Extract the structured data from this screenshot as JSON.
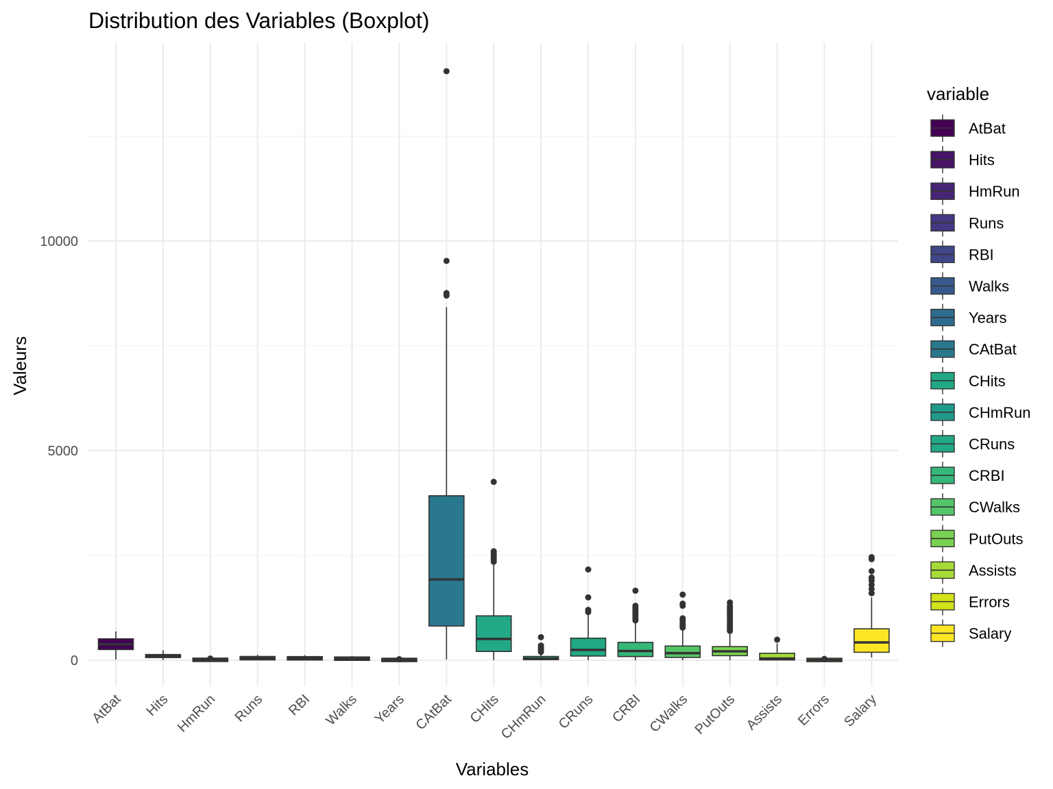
{
  "chart_data": {
    "type": "boxplot",
    "title": "Distribution des Variables (Boxplot)",
    "xlabel": "Variables",
    "ylabel": "Valeurs",
    "ylim": [
      -600,
      14200
    ],
    "yticks": [
      0,
      5000,
      10000
    ],
    "grid": true,
    "legend": {
      "title": "variable",
      "position": "right"
    },
    "categories": [
      "AtBat",
      "Hits",
      "HmRun",
      "Runs",
      "RBI",
      "Walks",
      "Years",
      "CAtBat",
      "CHits",
      "CHmRun",
      "CRuns",
      "CRBI",
      "CWalks",
      "PutOuts",
      "Assists",
      "Errors",
      "Salary"
    ],
    "colors": [
      "#440154",
      "#471365",
      "#482475",
      "#443983",
      "#3F4788",
      "#375A8C",
      "#2F6B8E",
      "#29788E",
      "#22A884",
      "#1F998A",
      "#22A884",
      "#35B779",
      "#54C568",
      "#7AD151",
      "#A5DB36",
      "#D2E21B",
      "#FDE725"
    ],
    "boxes": [
      {
        "name": "AtBat",
        "min": 16,
        "q1": 255,
        "median": 379,
        "q3": 512,
        "max": 687,
        "outliers": []
      },
      {
        "name": "Hits",
        "min": 1,
        "q1": 64,
        "median": 96,
        "q3": 137,
        "max": 238,
        "outliers": []
      },
      {
        "name": "HmRun",
        "min": 0,
        "q1": 4,
        "median": 8,
        "q3": 16,
        "max": 37,
        "outliers": [
          40
        ]
      },
      {
        "name": "Runs",
        "min": 0,
        "q1": 30,
        "median": 48,
        "q3": 69,
        "max": 130,
        "outliers": []
      },
      {
        "name": "RBI",
        "min": 0,
        "q1": 28,
        "median": 44,
        "q3": 64,
        "max": 121,
        "outliers": []
      },
      {
        "name": "Walks",
        "min": 0,
        "q1": 22,
        "median": 35,
        "q3": 53,
        "max": 105,
        "outliers": []
      },
      {
        "name": "Years",
        "min": 1,
        "q1": 4,
        "median": 6,
        "q3": 11,
        "max": 21,
        "outliers": [
          23,
          24
        ]
      },
      {
        "name": "CAtBat",
        "min": 19,
        "q1": 817,
        "median": 1928,
        "q3": 3924,
        "max": 8424,
        "outliers": [
          8700,
          8760,
          9528,
          14053
        ]
      },
      {
        "name": "CHits",
        "min": 4,
        "q1": 209,
        "median": 508,
        "q3": 1059,
        "max": 2304,
        "outliers": [
          2350,
          2400,
          2450,
          2500,
          2550,
          2600,
          4256
        ]
      },
      {
        "name": "CHmRun",
        "min": 0,
        "q1": 14,
        "median": 37,
        "q3": 90,
        "max": 190,
        "outliers": [
          200,
          230,
          260,
          300,
          350,
          550
        ]
      },
      {
        "name": "CRuns",
        "min": 1,
        "q1": 100,
        "median": 247,
        "q3": 526,
        "max": 1109,
        "outliers": [
          1150,
          1200,
          1500,
          2165
        ]
      },
      {
        "name": "CRBI",
        "min": 0,
        "q1": 88,
        "median": 220,
        "q3": 426,
        "max": 900,
        "outliers": [
          950,
          1000,
          1050,
          1100,
          1150,
          1200,
          1250,
          1300,
          1659
        ]
      },
      {
        "name": "CWalks",
        "min": 0,
        "q1": 67,
        "median": 170,
        "q3": 339,
        "max": 740,
        "outliers": [
          780,
          820,
          860,
          900,
          950,
          1000,
          1300,
          1350,
          1566
        ]
      },
      {
        "name": "PutOuts",
        "min": 0,
        "q1": 109,
        "median": 212,
        "q3": 325,
        "max": 649,
        "outliers": [
          700,
          750,
          800,
          850,
          900,
          950,
          1000,
          1050,
          1100,
          1150,
          1200,
          1250,
          1300,
          1378
        ]
      },
      {
        "name": "Assists",
        "min": 0,
        "q1": 7,
        "median": 40,
        "q3": 166,
        "max": 400,
        "outliers": [
          492
        ]
      },
      {
        "name": "Errors",
        "min": 0,
        "q1": 3,
        "median": 6,
        "q3": 11,
        "max": 23,
        "outliers": [
          25,
          32
        ]
      },
      {
        "name": "Salary",
        "min": 68,
        "q1": 190,
        "median": 425,
        "q3": 750,
        "max": 1500,
        "outliers": [
          1600,
          1700,
          1800,
          1900,
          1975,
          2127,
          2412,
          2460
        ]
      }
    ]
  }
}
